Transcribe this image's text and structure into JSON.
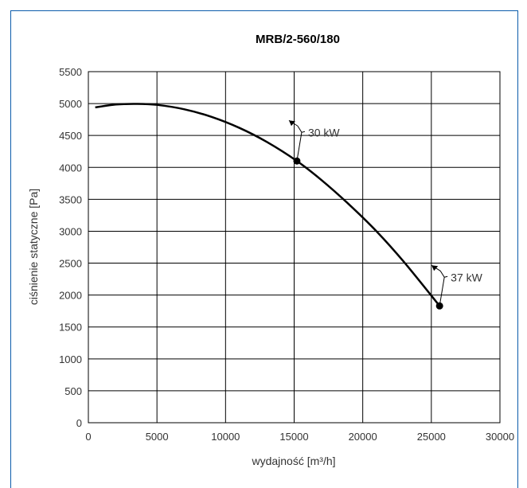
{
  "chart_data": {
    "type": "line",
    "title": "MRB/2-560/180",
    "xlabel": "wydajność [m³/h]",
    "ylabel": "ciśnienie statyczne [Pa]",
    "xlim": [
      0,
      30000
    ],
    "ylim": [
      0,
      5500
    ],
    "x_ticks": [
      "0",
      "5000",
      "10000",
      "15000",
      "20000",
      "25000",
      "30000"
    ],
    "y_ticks": [
      "0",
      "500",
      "1000",
      "1500",
      "2000",
      "2500",
      "3000",
      "3500",
      "4000",
      "4500",
      "5000",
      "5500"
    ],
    "grid": true,
    "series": [
      {
        "x": [
          500,
          2000,
          3500,
          5000,
          7000,
          9000,
          11000,
          13000,
          15200,
          17000,
          19000,
          21000,
          23000,
          25600
        ],
        "values": [
          4940,
          4985,
          4995,
          4980,
          4910,
          4790,
          4620,
          4400,
          4100,
          3800,
          3420,
          3000,
          2520,
          1830
        ],
        "color": "#000000"
      }
    ],
    "annotations": [
      {
        "label": "30 kW",
        "x": 15200,
        "y": 4100
      },
      {
        "label": "37 kW",
        "x": 25600,
        "y": 1830
      }
    ]
  }
}
